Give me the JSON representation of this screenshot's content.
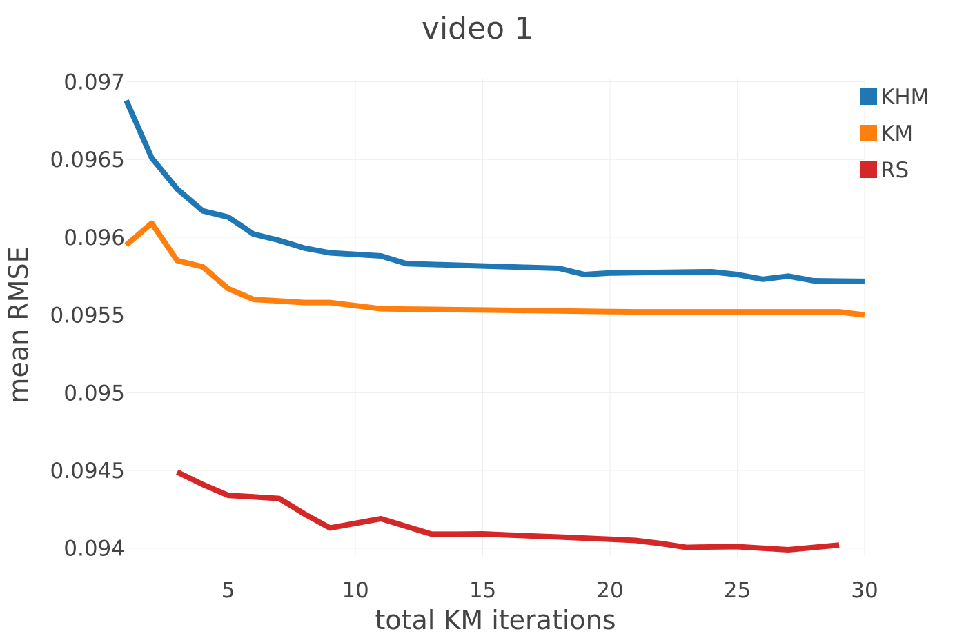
{
  "chart_data": {
    "type": "line",
    "title": "video 1",
    "xlabel": "total KM iterations",
    "ylabel": "mean RMSE",
    "xlim": [
      1,
      30
    ],
    "ylim": [
      0.09395,
      0.09702
    ],
    "x_ticks": [
      5,
      10,
      15,
      20,
      25,
      30
    ],
    "x_tick_labels": [
      "5",
      "10",
      "15",
      "20",
      "25",
      "30"
    ],
    "y_ticks": [
      0.094,
      0.0945,
      0.095,
      0.0955,
      0.096,
      0.0965,
      0.097
    ],
    "y_tick_labels": [
      "0.094",
      "0.0945",
      "0.095",
      "0.0955",
      "0.096",
      "0.0965",
      "0.097"
    ],
    "grid": true,
    "legend_position": "top-right",
    "series": [
      {
        "name": "KHM",
        "color": "#1f77b4",
        "x": [
          1,
          2,
          3,
          4,
          5,
          6,
          7,
          8,
          9,
          10,
          11,
          12,
          13,
          14,
          15,
          16,
          17,
          18,
          19,
          20,
          21,
          22,
          23,
          24,
          25,
          26,
          27,
          28,
          29,
          30
        ],
        "values": [
          0.09688,
          0.09651,
          0.09631,
          0.09617,
          0.09613,
          0.09602,
          0.09598,
          0.09593,
          0.0959,
          0.09589,
          0.09588,
          0.09583,
          0.095825,
          0.09582,
          0.095815,
          0.09581,
          0.095805,
          0.0958,
          0.09576,
          0.09577,
          0.095772,
          0.095774,
          0.095776,
          0.095778,
          0.09576,
          0.09573,
          0.09575,
          0.09572,
          0.095718,
          0.095716
        ]
      },
      {
        "name": "KM",
        "color": "#ff7f0e",
        "x": [
          1,
          2,
          3,
          4,
          5,
          6,
          7,
          8,
          9,
          10,
          11,
          12,
          13,
          14,
          15,
          16,
          17,
          18,
          19,
          20,
          21,
          22,
          23,
          24,
          25,
          26,
          27,
          28,
          29,
          30
        ],
        "values": [
          0.09595,
          0.09609,
          0.09585,
          0.09581,
          0.09567,
          0.0956,
          0.09559,
          0.09558,
          0.09558,
          0.09556,
          0.09554,
          0.095538,
          0.095536,
          0.095534,
          0.095532,
          0.09553,
          0.095528,
          0.095526,
          0.095524,
          0.095522,
          0.09552,
          0.09552,
          0.09552,
          0.09552,
          0.09552,
          0.09552,
          0.09552,
          0.09552,
          0.09552,
          0.0955
        ]
      },
      {
        "name": "RS",
        "color": "#d62728",
        "x": [
          3,
          4,
          5,
          6,
          7,
          8,
          9,
          10,
          11,
          12,
          13,
          14,
          15,
          16,
          17,
          18,
          19,
          20,
          21,
          22,
          23,
          24,
          25,
          26,
          27,
          28,
          29
        ],
        "values": [
          0.09449,
          0.09441,
          0.09434,
          0.09433,
          0.09432,
          0.09422,
          0.09413,
          0.09416,
          0.09419,
          0.09414,
          0.09409,
          0.09409,
          0.094092,
          0.094085,
          0.094078,
          0.094072,
          0.094065,
          0.094058,
          0.09405,
          0.09403,
          0.094005,
          0.094008,
          0.09401,
          0.094,
          0.09399,
          0.094005,
          0.09402
        ]
      }
    ]
  }
}
